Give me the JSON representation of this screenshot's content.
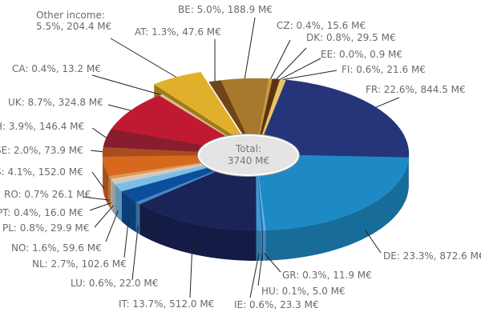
{
  "chart_data": {
    "type": "pie",
    "style": "3d-exploded",
    "total_label": "Total:",
    "total_value": "3740 M€",
    "unit": "M€",
    "slices": [
      {
        "key": "FR",
        "label": "FR: 22.6%, 844.5 M€",
        "percent": 22.6,
        "value": 844.5,
        "color": "#26347a"
      },
      {
        "key": "DE",
        "label": "DE: 23.3%, 872.6 M€",
        "percent": 23.3,
        "value": 872.6,
        "color": "#1d8ac6"
      },
      {
        "key": "GR",
        "label": "GR: 0.3%, 11.9 M€",
        "percent": 0.3,
        "value": 11.9,
        "color": "#5ab0e0"
      },
      {
        "key": "HU",
        "label": "HU: 0.1%, 5.0 M€",
        "percent": 0.1,
        "value": 5.0,
        "color": "#0c3f8a"
      },
      {
        "key": "IE",
        "label": "IE: 0.6%, 23.3 M€",
        "percent": 0.6,
        "value": 23.3,
        "color": "#3f9ad4"
      },
      {
        "key": "IT",
        "label": "IT: 13.7%, 512.0 M€",
        "percent": 13.7,
        "value": 512.0,
        "color": "#1a2458"
      },
      {
        "key": "LU",
        "label": "LU:  0.6%, 22.0 M€",
        "percent": 0.6,
        "value": 22.0,
        "color": "#4a86c2"
      },
      {
        "key": "NL",
        "label": "NL: 2.7%, 102.6 M€",
        "percent": 2.7,
        "value": 102.6,
        "color": "#0b4f9c"
      },
      {
        "key": "NO",
        "label": "NO: 1.6%, 59.6 M€",
        "percent": 1.6,
        "value": 59.6,
        "color": "#7dbde4"
      },
      {
        "key": "PL",
        "label": "PL: 0.8%, 29.9 M€",
        "percent": 0.8,
        "value": 29.9,
        "color": "#c9c9c9"
      },
      {
        "key": "PT",
        "label": "PT: 0.4%, 16.0 M€",
        "percent": 0.4,
        "value": 16.0,
        "color": "#f0c79a"
      },
      {
        "key": "RO",
        "label": "RO: 0.7% 26.1 M€",
        "percent": 0.7,
        "value": 26.1,
        "color": "#d89a5a"
      },
      {
        "key": "ES",
        "label": "S: 4.1%, 152.0 M€",
        "percent": 4.1,
        "value": 152.0,
        "color": "#d8681e"
      },
      {
        "key": "SE",
        "label": "SE: 2.0%, 73.9 M€",
        "percent": 2.0,
        "value": 73.9,
        "color": "#a84e1e"
      },
      {
        "key": "CH",
        "label": "H: 3.9%, 146.4 M€",
        "percent": 3.9,
        "value": 146.4,
        "color": "#8a1c30"
      },
      {
        "key": "UK",
        "label": "UK: 8.7%, 324.8 M€",
        "percent": 8.7,
        "value": 324.8,
        "color": "#c01a32"
      },
      {
        "key": "CA",
        "label": "CA: 0.4%, 13.2 M€",
        "percent": 0.4,
        "value": 13.2,
        "color": "#d8c090"
      },
      {
        "key": "Other",
        "label": "Other income:",
        "label2": "5.5%, 204.4 M€",
        "percent": 5.5,
        "value": 204.4,
        "color": "#e0b02a",
        "exploded": true
      },
      {
        "key": "AT",
        "label": "AT: 1.3%, 47.6 M€",
        "percent": 1.3,
        "value": 47.6,
        "color": "#6e4418"
      },
      {
        "key": "BE",
        "label": "BE: 5.0%, 188.9 M€",
        "percent": 5.0,
        "value": 188.9,
        "color": "#a8792c"
      },
      {
        "key": "CZ",
        "label": "CZ: 0.4%, 15.6 M€",
        "percent": 0.4,
        "value": 15.6,
        "color": "#c89a40"
      },
      {
        "key": "DK",
        "label": "DK: 0.8%, 29.5 M€",
        "percent": 0.8,
        "value": 29.5,
        "color": "#5a3410"
      },
      {
        "key": "EE",
        "label": "EE: 0.0%, 0.9 M€",
        "percent": 0.0,
        "value": 0.9,
        "color": "#8a5a20"
      },
      {
        "key": "FI",
        "label": "FI: 0.6%, 21.6 M€",
        "percent": 0.6,
        "value": 21.6,
        "color": "#e8c468"
      }
    ]
  }
}
